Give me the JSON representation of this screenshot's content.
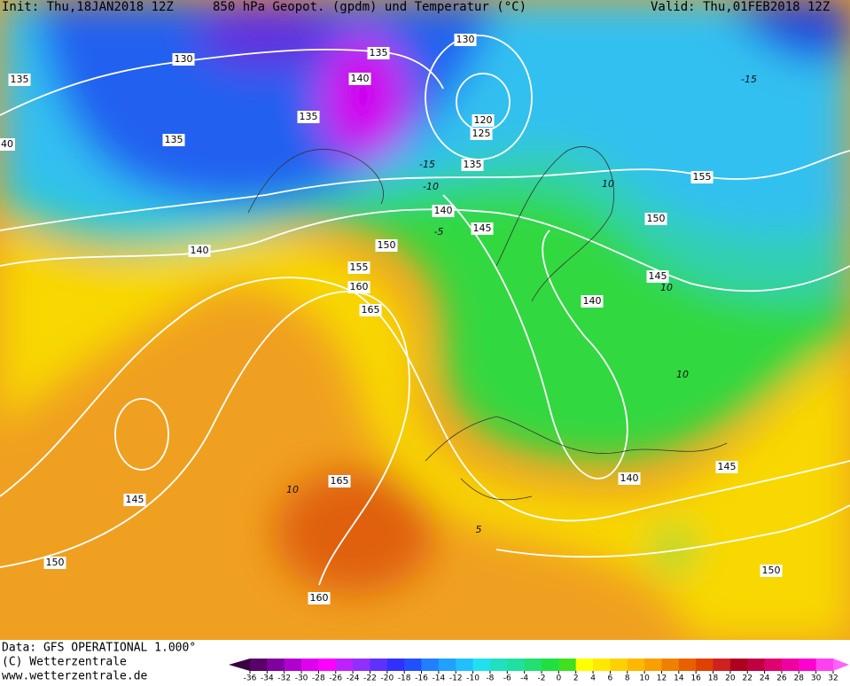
{
  "header": {
    "init": "Init: Thu,18JAN2018 12Z",
    "title": "850 hPa Geopot. (gpdm) und Temperatur (°C)",
    "valid": "Valid: Thu,01FEB2018 12Z"
  },
  "footer": {
    "data": "Data: GFS OPERATIONAL 1.000°",
    "copyright": "(C) Wetterzentrale",
    "url": "www.wetterzentrale.de"
  },
  "geopotential_labels": [
    135,
    130,
    135,
    130,
    140,
    135,
    135,
    120,
    125,
    135,
    40,
    155,
    150,
    140,
    145,
    150,
    140,
    155,
    160,
    165,
    145,
    140,
    145,
    140,
    165,
    145,
    150,
    160,
    150
  ],
  "temperature_labels": [
    -15,
    -15,
    -10,
    -5,
    10,
    10,
    10,
    10,
    5
  ],
  "colorbar": {
    "ticks": [
      -36,
      -34,
      -32,
      -30,
      -28,
      -26,
      -24,
      -22,
      -20,
      -18,
      -16,
      -14,
      -12,
      -10,
      -8,
      -6,
      -4,
      -2,
      0,
      2,
      4,
      6,
      8,
      10,
      12,
      14,
      16,
      18,
      20,
      22,
      24,
      26,
      28,
      30,
      32
    ],
    "colors": [
      "#3a0040",
      "#5a006a",
      "#8000a0",
      "#b000d0",
      "#e000f0",
      "#ff00ff",
      "#c020ff",
      "#9030ff",
      "#6030ff",
      "#3030ff",
      "#2050ff",
      "#2080ff",
      "#20a0ff",
      "#20c0ff",
      "#20e0f0",
      "#20e0c0",
      "#20e0a0",
      "#20e070",
      "#20e040",
      "#40e020",
      "#ffff00",
      "#ffe800",
      "#ffd000",
      "#ffb800",
      "#f8a000",
      "#f08000",
      "#e86000",
      "#e04000",
      "#d02020",
      "#b00020",
      "#c00040",
      "#e00070",
      "#f000a0",
      "#ff00d0",
      "#ff40f0",
      "#ff60ff"
    ]
  }
}
